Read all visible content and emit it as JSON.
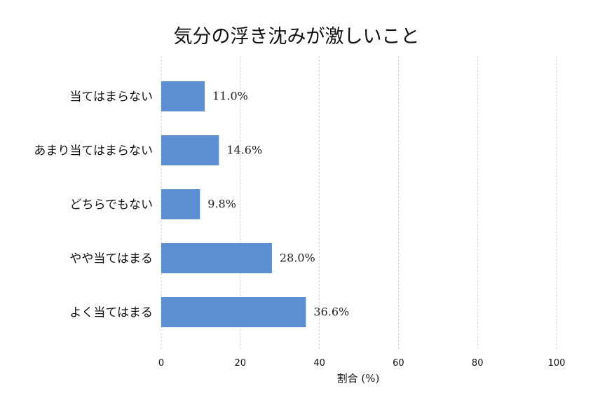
{
  "chart_data": {
    "type": "bar",
    "orientation": "horizontal",
    "title": "気分の浮き沈みが激しいこと",
    "xlabel": "割合 (%)",
    "ylabel": "",
    "categories": [
      "当てはまらない",
      "あまり当てはまらない",
      "どちらでもない",
      "やや当てはまる",
      "よく当てはまる"
    ],
    "values": [
      11.0,
      14.6,
      9.8,
      28.0,
      36.6
    ],
    "value_labels": [
      "11.0%",
      "14.6%",
      "9.8%",
      "28.0%",
      "36.6%"
    ],
    "xlim": [
      0,
      100
    ],
    "xticks": [
      0,
      20,
      40,
      60,
      80,
      100
    ],
    "xtick_labels": [
      "0",
      "20",
      "40",
      "60",
      "80",
      "100"
    ],
    "grid": "x-dashed",
    "bar_color": "#5b8fd1"
  }
}
